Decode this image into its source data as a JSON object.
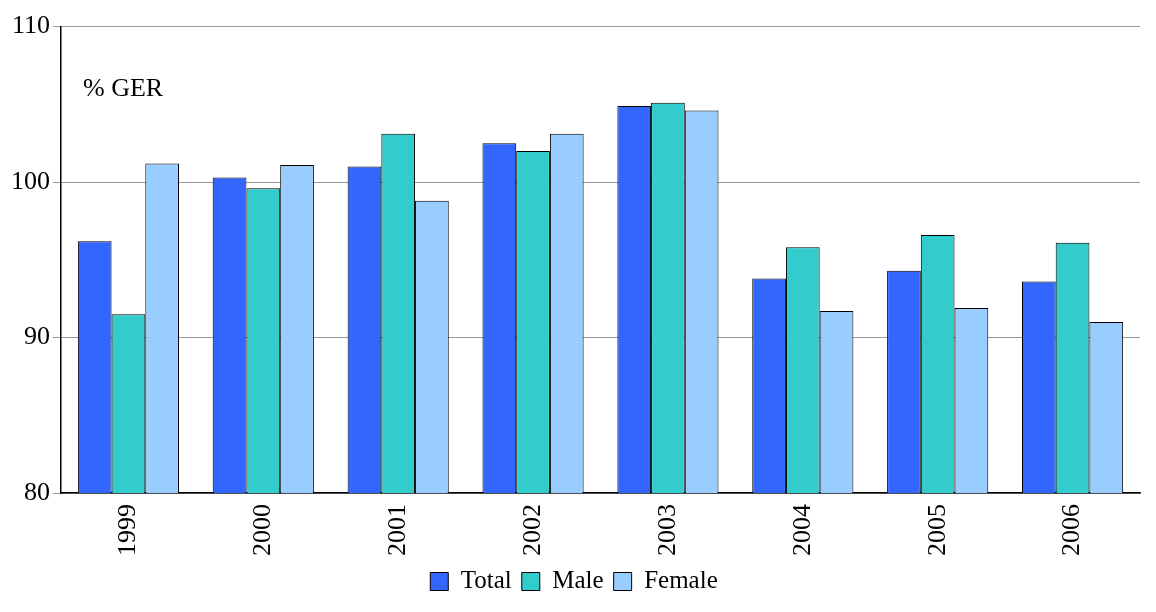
{
  "chart_data": {
    "type": "bar",
    "categories": [
      "1999",
      "2000",
      "2001",
      "2002",
      "2003",
      "2004",
      "2005",
      "2006"
    ],
    "series": [
      {
        "name": "Total",
        "color": "#3366ff",
        "values": [
          96.2,
          100.3,
          101.0,
          102.5,
          104.9,
          93.8,
          94.3,
          93.6
        ]
      },
      {
        "name": "Male",
        "color": "#33cccc",
        "values": [
          91.5,
          99.6,
          103.1,
          102.0,
          105.1,
          95.8,
          96.6,
          96.1
        ]
      },
      {
        "name": "Female",
        "color": "#99ccff",
        "values": [
          101.2,
          101.1,
          98.8,
          103.1,
          104.6,
          91.7,
          91.9,
          91.0
        ]
      }
    ],
    "ylim": [
      80,
      110
    ],
    "yticks": [
      80,
      90,
      100,
      110
    ],
    "grid": "y",
    "legend": "bottom",
    "annotations": [
      "% GER"
    ]
  }
}
